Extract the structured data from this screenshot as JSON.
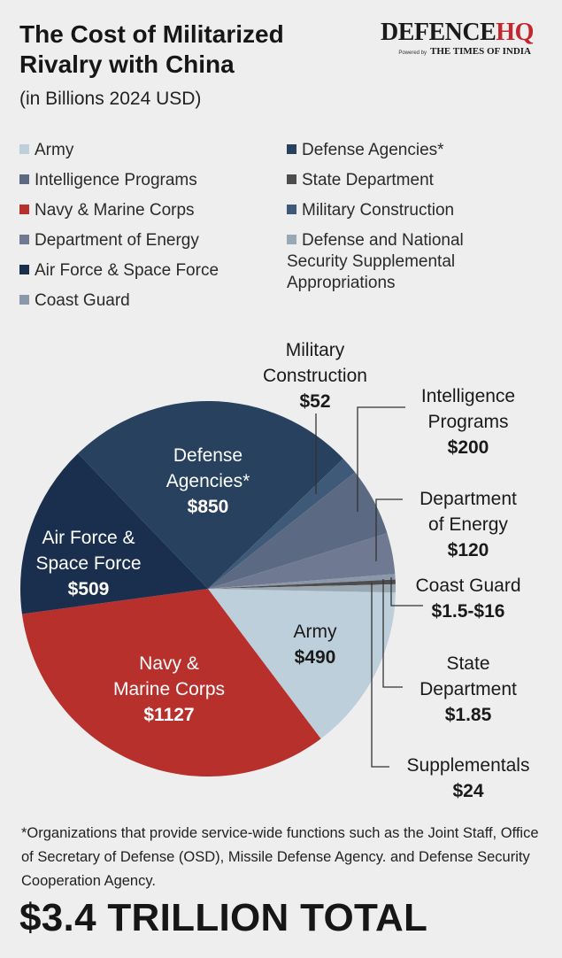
{
  "header": {
    "title": "The Cost of Militarized Rivalry with China",
    "subtitle": "(in Billions 2024 USD)"
  },
  "brand": {
    "name_dark": "DEFENCE",
    "name_accent": "HQ",
    "powered_by": "Powered by",
    "partner": "THE TIMES OF INDIA"
  },
  "legend": {
    "items": [
      {
        "label": "Army",
        "color": "#bccfdb"
      },
      {
        "label": "Intelligence Programs",
        "color": "#5b6a82"
      },
      {
        "label": "Navy & Marine Corps",
        "color": "#b8302c"
      },
      {
        "label": "Department of Energy",
        "color": "#6f7a92"
      },
      {
        "label": "Air Force & Space Force",
        "color": "#1a2f4e"
      },
      {
        "label": "Coast Guard",
        "color": "#8b97aa"
      },
      {
        "label": "Defense Agencies*",
        "color": "#27415f"
      },
      {
        "label": "State Department",
        "color": "#4d4d4d"
      },
      {
        "label": "Military Construction",
        "color": "#3e5a78"
      },
      {
        "label": "Defense and National Security Supplemental Appropriations",
        "color": "#9aa8b4"
      }
    ]
  },
  "chart_data": {
    "type": "pie",
    "unit": "Billions 2024 USD",
    "slices": [
      {
        "name": "Army",
        "value": 490,
        "label": "$490",
        "color": "#bccfdb",
        "text_color": "#1a1a1a"
      },
      {
        "name": "Navy & Marine Corps",
        "value": 1127,
        "label": "$1127",
        "color": "#b8302c",
        "text_color": "#ffffff"
      },
      {
        "name": "Air Force & Space Force",
        "value": 509,
        "label": "$509",
        "color": "#1a2f4e",
        "text_color": "#ffffff"
      },
      {
        "name": "Defense Agencies*",
        "value": 850,
        "label": "$850",
        "color": "#27415f",
        "text_color": "#ffffff"
      },
      {
        "name": "Military Construction",
        "value": 52,
        "label": "$52",
        "color": "#3e5a78"
      },
      {
        "name": "Intelligence Programs",
        "value": 200,
        "label": "$200",
        "color": "#5b6a82"
      },
      {
        "name": "Department of Energy",
        "value": 120,
        "label": "$120",
        "color": "#6f7a92"
      },
      {
        "name": "Coast Guard",
        "value": 16,
        "label": "$1.5-$16",
        "color": "#8b97aa"
      },
      {
        "name": "State Department",
        "value": 1.85,
        "label": "$1.85",
        "color": "#4d4d4d"
      },
      {
        "name": "Supplementals",
        "value": 24,
        "label": "$24",
        "color": "#9aa8b4"
      }
    ],
    "callouts": {
      "Army": [
        "Army"
      ],
      "Navy & Marine Corps": [
        "Navy &",
        "Marine Corps"
      ],
      "Air Force & Space Force": [
        "Air Force &",
        "Space Force"
      ],
      "Defense Agencies*": [
        "Defense",
        "Agencies*"
      ],
      "Military Construction": [
        "Military",
        "Construction"
      ],
      "Intelligence Programs": [
        "Intelligence",
        "Programs"
      ],
      "Department of Energy": [
        "Department",
        "of Energy"
      ],
      "Coast Guard": [
        "Coast Guard"
      ],
      "State Department": [
        "State",
        "Department"
      ],
      "Supplementals": [
        "Supplementals"
      ]
    }
  },
  "footnote": "*Organizations that provide service-wide functions such as the Joint Staff, Office of Secretary of Defense (OSD), Missile Defense Agency. and Defense Security Cooperation Agency.",
  "total": "$3.4 TRILLION TOTAL"
}
